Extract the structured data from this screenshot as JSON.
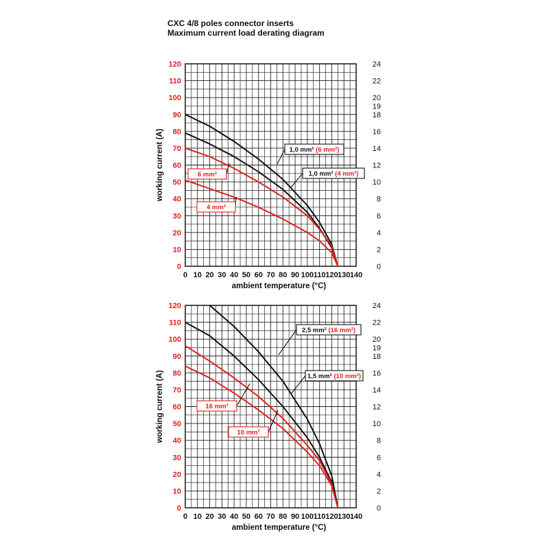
{
  "header": {
    "title_line1": "CXC 4/8 poles connector inserts",
    "title_line2": "Maximum current load derating diagram"
  },
  "colors": {
    "red": "#e0201c",
    "black": "#111111",
    "grid": "#222222"
  },
  "chart_data": [
    {
      "type": "line",
      "xlabel": "ambient temperature (°C)",
      "ylabel_left": "working current (A)",
      "xlim": [
        0,
        140
      ],
      "ylim_left": [
        0,
        120
      ],
      "ylim_right": [
        0,
        24
      ],
      "x_ticks": [
        "0",
        "10",
        "20",
        "30",
        "40",
        "50",
        "60",
        "70",
        "80",
        "90",
        "100",
        "110",
        "120",
        "130",
        "140"
      ],
      "y_ticks_left": [
        "0",
        "10",
        "20",
        "30",
        "40",
        "50",
        "60",
        "70",
        "80",
        "90",
        "100",
        "110",
        "120"
      ],
      "y_ticks_right": [
        "0",
        "2",
        "4",
        "6",
        "8",
        "10",
        "12",
        "14",
        "16",
        "18",
        "19",
        "20",
        "22",
        "24"
      ],
      "grid": true,
      "series": [
        {
          "name": "1,0 mm² (6 mm²)",
          "name_main": "1,0 mm²",
          "name_paren": "(6 mm²)",
          "color": "#111111",
          "axis": "right",
          "x": [
            0,
            20,
            40,
            60,
            80,
            100,
            110,
            120,
            125
          ],
          "y": [
            18,
            16.6,
            14.8,
            12.7,
            10.3,
            7.2,
            5.2,
            2.6,
            0
          ]
        },
        {
          "name": "1,0 mm² (4 mm²)",
          "name_main": "1,0 mm²",
          "name_paren": "(4 mm²)",
          "color": "#111111",
          "axis": "right",
          "x": [
            0,
            20,
            40,
            60,
            80,
            100,
            110,
            120,
            125
          ],
          "y": [
            15.8,
            14.5,
            13,
            11.2,
            9.1,
            6.4,
            4.5,
            2.2,
            0
          ]
        },
        {
          "name": "6 mm²",
          "color": "#e0201c",
          "axis": "left",
          "x": [
            0,
            20,
            40,
            60,
            80,
            100,
            110,
            120,
            125
          ],
          "y": [
            70,
            65,
            58,
            50,
            41,
            30,
            22,
            12,
            0
          ]
        },
        {
          "name": "4 mm²",
          "color": "#e0201c",
          "axis": "left",
          "x": [
            0,
            20,
            40,
            60,
            80,
            100,
            110,
            120,
            125
          ],
          "y": [
            51,
            46,
            41,
            35,
            28,
            20,
            15,
            8,
            0
          ]
        }
      ]
    },
    {
      "type": "line",
      "xlabel": "ambient temperature (°C)",
      "ylabel_left": "working current (A)",
      "xlim": [
        0,
        140
      ],
      "ylim_left": [
        0,
        120
      ],
      "ylim_right": [
        0,
        24
      ],
      "x_ticks": [
        "0",
        "10",
        "20",
        "30",
        "40",
        "50",
        "60",
        "70",
        "80",
        "90",
        "100",
        "110",
        "120",
        "130",
        "140"
      ],
      "y_ticks_left": [
        "0",
        "10",
        "20",
        "30",
        "40",
        "50",
        "60",
        "70",
        "80",
        "90",
        "100",
        "110",
        "120"
      ],
      "y_ticks_right": [
        "0",
        "2",
        "4",
        "6",
        "8",
        "10",
        "12",
        "14",
        "16",
        "18",
        "19",
        "20",
        "22",
        "24"
      ],
      "grid": true,
      "series": [
        {
          "name": "2,5 mm² (16 mm²)",
          "name_main": "2,5 mm²",
          "name_paren": "(16 mm²)",
          "color": "#111111",
          "axis": "right",
          "x": [
            20,
            40,
            60,
            80,
            100,
            110,
            120,
            125
          ],
          "y": [
            24,
            21.5,
            18.5,
            15,
            10.5,
            7.6,
            3.8,
            0
          ]
        },
        {
          "name": "1,5 mm² (10 mm²)",
          "name_main": "1,5 mm²",
          "name_paren": "(10 mm²)",
          "color": "#111111",
          "axis": "right",
          "x": [
            0,
            20,
            40,
            60,
            80,
            100,
            110,
            120,
            125
          ],
          "y": [
            22,
            20.4,
            18,
            15.2,
            12,
            8.3,
            6,
            3,
            0
          ]
        },
        {
          "name": "16 mm²",
          "color": "#e0201c",
          "axis": "left",
          "x": [
            0,
            20,
            40,
            60,
            80,
            100,
            110,
            120,
            125
          ],
          "y": [
            96,
            87,
            77,
            66,
            53,
            37,
            28,
            14,
            0
          ]
        },
        {
          "name": "10 mm²",
          "color": "#e0201c",
          "axis": "left",
          "x": [
            0,
            20,
            40,
            60,
            80,
            100,
            110,
            120,
            125
          ],
          "y": [
            84,
            77,
            68,
            58,
            47,
            33,
            25,
            13,
            0
          ]
        }
      ]
    }
  ]
}
